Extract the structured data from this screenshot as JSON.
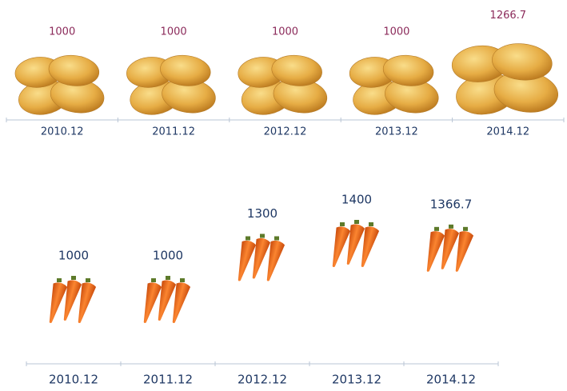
{
  "chart_data": [
    {
      "type": "size",
      "categories": [
        "2010.12",
        "2011.12",
        "2012.12",
        "2013.12",
        "2014.12"
      ],
      "values": [
        1000,
        1000,
        1000,
        1000,
        1266.7
      ],
      "color": "#e3a83a",
      "label_color": "#8b2a5a"
    },
    {
      "type": "position",
      "categories": [
        "2010.12",
        "2011.12",
        "2012.12",
        "2013.12",
        "2014.12"
      ],
      "values": [
        1000,
        1000,
        1300,
        1400,
        1366.7
      ],
      "color": "#ee6a1c",
      "label_color": "#1f3864"
    }
  ]
}
